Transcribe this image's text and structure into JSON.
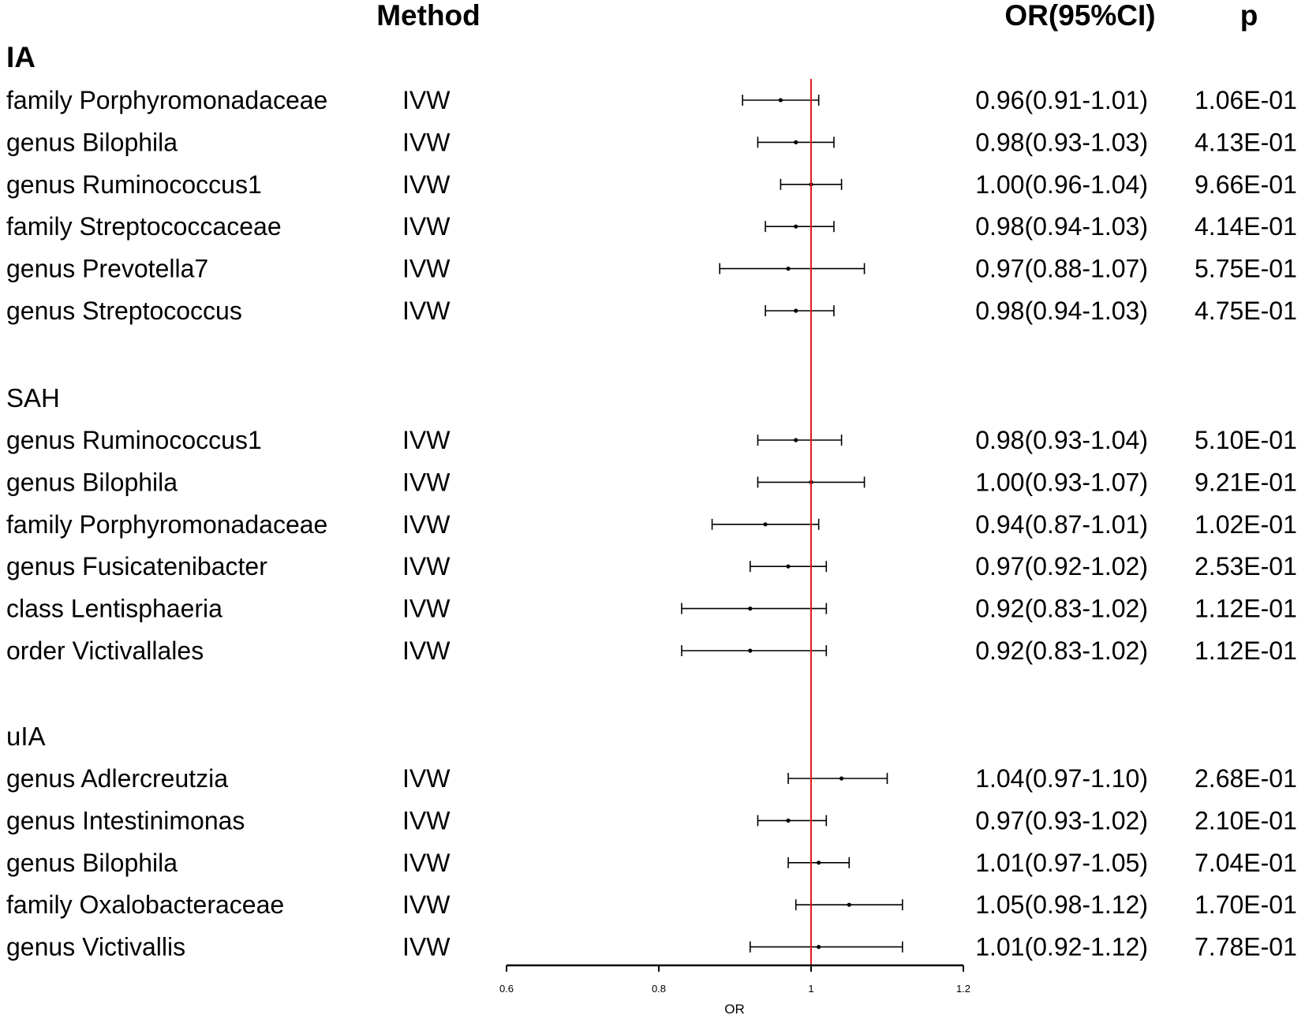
{
  "chart_data": {
    "type": "forest",
    "headers": {
      "method": "Method",
      "or_ci": "OR(95%CI)",
      "p": "p"
    },
    "xlabel": "OR",
    "xlim": [
      0.6,
      1.2
    ],
    "xticks": [
      "0.6",
      "0.8",
      "1",
      "1.2"
    ],
    "reference_line": 1,
    "reference_color": "#e31a1c",
    "groups": [
      {
        "name": "IA",
        "rows": [
          {
            "exposure": "family Porphyromonadaceae",
            "method": "IVW",
            "or": 0.96,
            "lo": 0.91,
            "hi": 1.01,
            "or_ci": "0.96(0.91-1.01)",
            "p": "1.06E-01"
          },
          {
            "exposure": "genus Bilophila",
            "method": "IVW",
            "or": 0.98,
            "lo": 0.93,
            "hi": 1.03,
            "or_ci": "0.98(0.93-1.03)",
            "p": "4.13E-01"
          },
          {
            "exposure": "genus Ruminococcus1",
            "method": "IVW",
            "or": 1.0,
            "lo": 0.96,
            "hi": 1.04,
            "or_ci": "1.00(0.96-1.04)",
            "p": "9.66E-01"
          },
          {
            "exposure": "family Streptococcaceae",
            "method": "IVW",
            "or": 0.98,
            "lo": 0.94,
            "hi": 1.03,
            "or_ci": "0.98(0.94-1.03)",
            "p": "4.14E-01"
          },
          {
            "exposure": "genus Prevotella7",
            "method": "IVW",
            "or": 0.97,
            "lo": 0.88,
            "hi": 1.07,
            "or_ci": "0.97(0.88-1.07)",
            "p": "5.75E-01"
          },
          {
            "exposure": "genus Streptococcus",
            "method": "IVW",
            "or": 0.98,
            "lo": 0.94,
            "hi": 1.03,
            "or_ci": "0.98(0.94-1.03)",
            "p": "4.75E-01"
          }
        ]
      },
      {
        "name": "SAH",
        "rows": [
          {
            "exposure": "genus Ruminococcus1",
            "method": "IVW",
            "or": 0.98,
            "lo": 0.93,
            "hi": 1.04,
            "or_ci": "0.98(0.93-1.04)",
            "p": "5.10E-01"
          },
          {
            "exposure": "genus Bilophila",
            "method": "IVW",
            "or": 1.0,
            "lo": 0.93,
            "hi": 1.07,
            "or_ci": "1.00(0.93-1.07)",
            "p": "9.21E-01"
          },
          {
            "exposure": "family Porphyromonadaceae",
            "method": "IVW",
            "or": 0.94,
            "lo": 0.87,
            "hi": 1.01,
            "or_ci": "0.94(0.87-1.01)",
            "p": "1.02E-01"
          },
          {
            "exposure": "genus Fusicatenibacter",
            "method": "IVW",
            "or": 0.97,
            "lo": 0.92,
            "hi": 1.02,
            "or_ci": "0.97(0.92-1.02)",
            "p": "2.53E-01"
          },
          {
            "exposure": "class Lentisphaeria",
            "method": "IVW",
            "or": 0.92,
            "lo": 0.83,
            "hi": 1.02,
            "or_ci": "0.92(0.83-1.02)",
            "p": "1.12E-01"
          },
          {
            "exposure": "order Victivallales",
            "method": "IVW",
            "or": 0.92,
            "lo": 0.83,
            "hi": 1.02,
            "or_ci": "0.92(0.83-1.02)",
            "p": "1.12E-01"
          }
        ]
      },
      {
        "name": "uIA",
        "rows": [
          {
            "exposure": "genus Adlercreutzia",
            "method": "IVW",
            "or": 1.04,
            "lo": 0.97,
            "hi": 1.1,
            "or_ci": "1.04(0.97-1.10)",
            "p": "2.68E-01"
          },
          {
            "exposure": "genus Intestinimonas",
            "method": "IVW",
            "or": 0.97,
            "lo": 0.93,
            "hi": 1.02,
            "or_ci": "0.97(0.93-1.02)",
            "p": "2.10E-01"
          },
          {
            "exposure": "genus Bilophila",
            "method": "IVW",
            "or": 1.01,
            "lo": 0.97,
            "hi": 1.05,
            "or_ci": "1.01(0.97-1.05)",
            "p": "7.04E-01"
          },
          {
            "exposure": "family Oxalobacteraceae",
            "method": "IVW",
            "or": 1.05,
            "lo": 0.98,
            "hi": 1.12,
            "or_ci": "1.05(0.98-1.12)",
            "p": "1.70E-01"
          },
          {
            "exposure": "genus Victivallis",
            "method": "IVW",
            "or": 1.01,
            "lo": 0.92,
            "hi": 1.12,
            "or_ci": "1.01(0.92-1.12)",
            "p": "7.78E-01"
          }
        ]
      }
    ]
  }
}
